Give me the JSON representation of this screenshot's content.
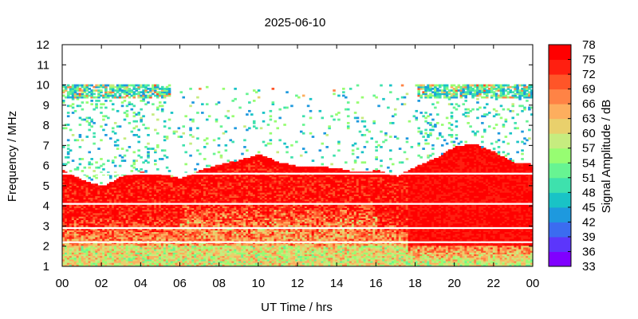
{
  "chart_data": {
    "type": "heatmap",
    "title": "2025-06-10",
    "xlabel": "UT Time / hrs",
    "ylabel": "Frequency / MHz",
    "colorbar_label": "Signal Amplitude / dB",
    "xlim": [
      0,
      24
    ],
    "ylim": [
      1,
      12
    ],
    "xticks": [
      "00",
      "02",
      "04",
      "06",
      "08",
      "10",
      "12",
      "14",
      "16",
      "18",
      "20",
      "22",
      "00"
    ],
    "yticks": [
      "1",
      "2",
      "3",
      "4",
      "5",
      "6",
      "7",
      "8",
      "9",
      "10",
      "11",
      "12"
    ],
    "colorbar_ticks": [
      "78",
      "75",
      "72",
      "69",
      "66",
      "63",
      "60",
      "57",
      "54",
      "51",
      "48",
      "45",
      "42",
      "39",
      "36",
      "33"
    ],
    "color_range": [
      33,
      78
    ],
    "colormap": [
      "#8000ff",
      "#5c36fb",
      "#3b6cf0",
      "#1e99de",
      "#19c3c6",
      "#3ee1ad",
      "#67f492",
      "#97fd72",
      "#c6ec7f",
      "#e9d06c",
      "#fdae5e",
      "#ff8345",
      "#ff5528",
      "#ff1f10",
      "#ff0000"
    ],
    "foF2_envelope_mhz": [
      {
        "t": 0,
        "f": 5.7
      },
      {
        "t": 1,
        "f": 5.2
      },
      {
        "t": 2,
        "f": 4.9
      },
      {
        "t": 3,
        "f": 5.4
      },
      {
        "t": 4,
        "f": 5.6
      },
      {
        "t": 5,
        "f": 5.5
      },
      {
        "t": 6,
        "f": 5.3
      },
      {
        "t": 7,
        "f": 5.7
      },
      {
        "t": 8,
        "f": 6.0
      },
      {
        "t": 9,
        "f": 6.2
      },
      {
        "t": 10,
        "f": 6.5
      },
      {
        "t": 11,
        "f": 6.1
      },
      {
        "t": 12,
        "f": 5.9
      },
      {
        "t": 13,
        "f": 5.9
      },
      {
        "t": 14,
        "f": 5.8
      },
      {
        "t": 15,
        "f": 5.6
      },
      {
        "t": 16,
        "f": 5.7
      },
      {
        "t": 17,
        "f": 5.4
      },
      {
        "t": 18,
        "f": 5.9
      },
      {
        "t": 19,
        "f": 6.3
      },
      {
        "t": 20,
        "f": 6.9
      },
      {
        "t": 21,
        "f": 7.0
      },
      {
        "t": 22,
        "f": 6.6
      },
      {
        "t": 23,
        "f": 6.1
      },
      {
        "t": 24,
        "f": 6.0
      }
    ],
    "sporadic_band_mhz": [
      9.3,
      10.0
    ],
    "interference_lines_mhz": [
      4.1,
      5.6,
      2.2,
      2.9
    ]
  }
}
